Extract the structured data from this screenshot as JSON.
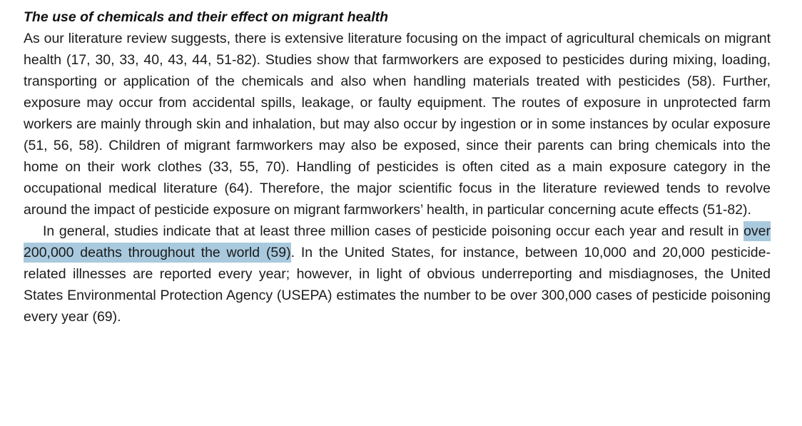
{
  "document": {
    "heading": "The use of chemicals and their effect on migrant health",
    "paragraph1": "As our literature review suggests, there is extensive literature focusing on the impact of agricultural chemicals on migrant health (17, 30, 33, 40, 43, 44, 51-82). Studies show that farmworkers are exposed to pesticides during mixing, loading, transporting or application of the chemicals and also when handling materials treated with pesticides (58). Further, exposure may occur from accidental spills, leakage, or faulty equipment. The routes of exposure in unprotected farm workers are mainly through skin and inhalation, but may also occur by ingestion or in some instances by ocular exposure (51, 56, 58). Children of migrant farmworkers may also be exposed, since their parents can bring chemicals into the home on their work clothes (33, 55, 70). Handling of pesticides is often cited as a main exposure category in the occupational medical literature (64). Therefore, the major scientific focus in the literature reviewed tends to revolve around the impact of pesticide exposure on migrant farmworkers’ health, in particular concerning acute effects (51-82).",
    "paragraph2": {
      "before": "In general, studies indicate that at least three million cases of pesticide poisoning occur each year and result in ",
      "highlighted": "over 200,000 deaths throughout the world (59)",
      "after": ". In the United States, for instance, between 10,000 and 20,000 pesticide-related illnesses are reported every year; however, in light of obvious underreporting and misdiagnoses, the United States Environmental Protection Agency (USEPA) estimates the number to be over 300,000 cases of pesticide poisoning every year (69)."
    },
    "highlight_color": "#a9cade",
    "text_color": "#1b1b1b"
  }
}
